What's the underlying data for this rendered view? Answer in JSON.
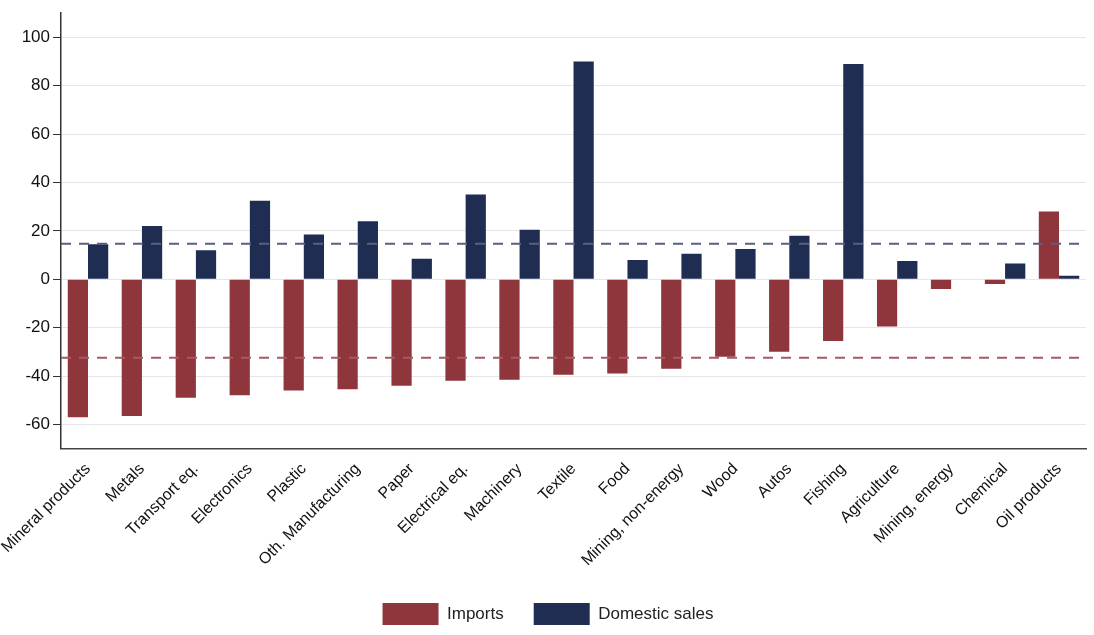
{
  "chart_data": {
    "type": "bar",
    "categories": [
      "Mineral products",
      "Metals",
      "Transport eq.",
      "Electronics",
      "Plastic",
      "Oth. Manufacturing",
      "Paper",
      "Electrical eq.",
      "Machinery",
      "Textile",
      "Food",
      "Mining, non-energy",
      "Wood",
      "Autos",
      "Fishing",
      "Agriculture",
      "Mining, energy",
      "Chemical",
      "Oil products"
    ],
    "series": [
      {
        "name": "Imports",
        "color": "#8f353c",
        "values": [
          -57,
          -56.5,
          -49,
          -48,
          -46,
          -45.5,
          -44,
          -42,
          -41.5,
          -39.5,
          -39,
          -37,
          -32,
          -30,
          -25.5,
          -19.5,
          -4,
          -2,
          28
        ]
      },
      {
        "name": "Domestic sales",
        "color": "#1f2d52",
        "values": [
          14.5,
          22,
          12,
          32.5,
          18.5,
          24,
          8.5,
          35,
          20.5,
          90,
          8,
          10.5,
          12.5,
          18,
          89,
          7.5,
          null,
          6.5,
          1.5
        ]
      }
    ],
    "ylim": [
      -70,
      110
    ],
    "yticks": [
      -60,
      -40,
      -20,
      0,
      20,
      40,
      60,
      80,
      100
    ],
    "ref_lines": [
      {
        "axis": "y",
        "value": 14.7,
        "color": "#56607f",
        "line_style": "dashed"
      },
      {
        "axis": "y",
        "value": -32.5,
        "color": "#a85a60",
        "line_style": "dashed"
      }
    ],
    "grid": "y",
    "legend": "bottom"
  }
}
